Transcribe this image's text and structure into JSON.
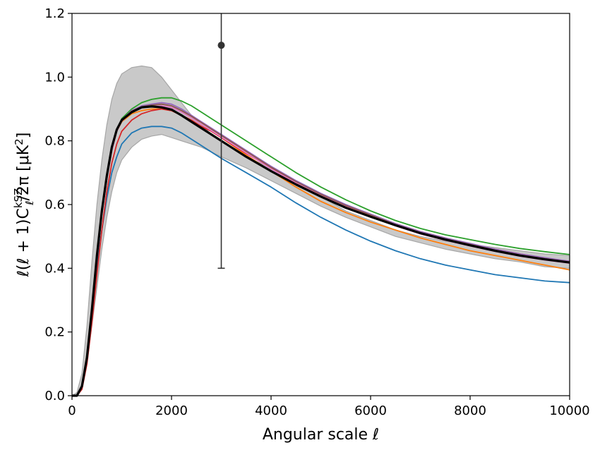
{
  "chart_data": {
    "type": "line",
    "xlabel": "Angular scale ℓ",
    "ylabel": "ℓ(ℓ + 1)C_ℓ^{kSZ}/2π [μK²]",
    "xlim": [
      0,
      10000
    ],
    "ylim": [
      0.0,
      1.2
    ],
    "x_ticks": [
      "0",
      "2000",
      "4000",
      "6000",
      "8000",
      "10000"
    ],
    "y_ticks": [
      "0.0",
      "0.2",
      "0.4",
      "0.6",
      "0.8",
      "1.0",
      "1.2"
    ],
    "grid": false,
    "x": [
      0,
      100,
      200,
      300,
      400,
      500,
      600,
      700,
      800,
      900,
      1000,
      1200,
      1400,
      1600,
      1800,
      2000,
      2200,
      2400,
      2600,
      2800,
      3000,
      3500,
      4000,
      4500,
      5000,
      5500,
      6000,
      6500,
      7000,
      7500,
      8000,
      8500,
      9000,
      9500,
      10000
    ],
    "band": {
      "color": "#c9c9c9",
      "edge_color": "#a6a6a6",
      "upper": [
        0,
        0.01,
        0.07,
        0.22,
        0.42,
        0.6,
        0.74,
        0.85,
        0.93,
        0.98,
        1.01,
        1.03,
        1.035,
        1.03,
        1.0,
        0.96,
        0.92,
        0.88,
        0.85,
        0.82,
        0.8,
        0.75,
        0.715,
        0.67,
        0.625,
        0.58,
        0.55,
        0.52,
        0.5,
        0.485,
        0.475,
        0.465,
        0.455,
        0.445,
        0.44
      ],
      "lower": [
        0,
        0.0,
        0.02,
        0.1,
        0.22,
        0.34,
        0.46,
        0.56,
        0.64,
        0.7,
        0.74,
        0.78,
        0.805,
        0.815,
        0.82,
        0.81,
        0.8,
        0.79,
        0.78,
        0.765,
        0.75,
        0.715,
        0.675,
        0.635,
        0.595,
        0.56,
        0.53,
        0.5,
        0.48,
        0.46,
        0.445,
        0.43,
        0.42,
        0.405,
        0.4
      ]
    },
    "series": [
      {
        "color": "#1f77b4",
        "width": 1.8,
        "values": [
          0,
          0.0,
          0.03,
          0.12,
          0.26,
          0.4,
          0.52,
          0.62,
          0.7,
          0.75,
          0.79,
          0.825,
          0.84,
          0.845,
          0.845,
          0.84,
          0.825,
          0.805,
          0.785,
          0.765,
          0.745,
          0.7,
          0.655,
          0.605,
          0.56,
          0.52,
          0.485,
          0.455,
          0.43,
          0.41,
          0.395,
          0.38,
          0.37,
          0.36,
          0.355
        ]
      },
      {
        "color": "#ff7f0e",
        "width": 1.8,
        "values": [
          0,
          0.0,
          0.03,
          0.13,
          0.28,
          0.44,
          0.57,
          0.68,
          0.77,
          0.83,
          0.86,
          0.885,
          0.895,
          0.9,
          0.9,
          0.895,
          0.88,
          0.865,
          0.845,
          0.83,
          0.81,
          0.755,
          0.705,
          0.655,
          0.61,
          0.575,
          0.545,
          0.52,
          0.495,
          0.475,
          0.455,
          0.44,
          0.425,
          0.41,
          0.395
        ]
      },
      {
        "color": "#2ca02c",
        "width": 1.8,
        "values": [
          0,
          0.0,
          0.03,
          0.12,
          0.27,
          0.43,
          0.57,
          0.68,
          0.77,
          0.83,
          0.87,
          0.9,
          0.92,
          0.93,
          0.935,
          0.935,
          0.925,
          0.91,
          0.89,
          0.87,
          0.85,
          0.8,
          0.75,
          0.7,
          0.655,
          0.615,
          0.58,
          0.55,
          0.525,
          0.505,
          0.49,
          0.475,
          0.462,
          0.452,
          0.443
        ]
      },
      {
        "color": "#d62728",
        "width": 1.8,
        "values": [
          0,
          0.0,
          0.02,
          0.1,
          0.23,
          0.38,
          0.52,
          0.64,
          0.73,
          0.79,
          0.83,
          0.865,
          0.885,
          0.895,
          0.9,
          0.895,
          0.88,
          0.865,
          0.845,
          0.83,
          0.81,
          0.76,
          0.715,
          0.67,
          0.63,
          0.595,
          0.565,
          0.54,
          0.515,
          0.495,
          0.475,
          0.46,
          0.445,
          0.432,
          0.42
        ]
      },
      {
        "color": "#9467bd",
        "width": 1.8,
        "values": [
          0,
          0.0,
          0.03,
          0.12,
          0.27,
          0.43,
          0.57,
          0.68,
          0.77,
          0.83,
          0.865,
          0.895,
          0.91,
          0.915,
          0.92,
          0.915,
          0.9,
          0.88,
          0.86,
          0.84,
          0.82,
          0.77,
          0.72,
          0.675,
          0.635,
          0.6,
          0.57,
          0.54,
          0.515,
          0.495,
          0.478,
          0.46,
          0.445,
          0.433,
          0.422
        ]
      },
      {
        "color": "#8c564b",
        "width": 1.8,
        "values": [
          0,
          0.0,
          0.03,
          0.12,
          0.27,
          0.43,
          0.57,
          0.68,
          0.77,
          0.83,
          0.865,
          0.893,
          0.907,
          0.912,
          0.915,
          0.91,
          0.895,
          0.877,
          0.857,
          0.837,
          0.817,
          0.767,
          0.717,
          0.672,
          0.632,
          0.597,
          0.567,
          0.537,
          0.512,
          0.492,
          0.475,
          0.457,
          0.442,
          0.43,
          0.42
        ]
      },
      {
        "color": "#e377c2",
        "width": 1.8,
        "values": [
          0,
          0.0,
          0.03,
          0.12,
          0.27,
          0.43,
          0.57,
          0.68,
          0.77,
          0.83,
          0.862,
          0.89,
          0.903,
          0.908,
          0.91,
          0.905,
          0.89,
          0.872,
          0.852,
          0.832,
          0.812,
          0.762,
          0.712,
          0.668,
          0.628,
          0.593,
          0.563,
          0.533,
          0.508,
          0.488,
          0.47,
          0.453,
          0.438,
          0.426,
          0.416
        ]
      },
      {
        "color": "#000000",
        "width": 3.2,
        "values": [
          0,
          0.0,
          0.03,
          0.12,
          0.27,
          0.44,
          0.58,
          0.69,
          0.78,
          0.835,
          0.865,
          0.89,
          0.905,
          0.908,
          0.905,
          0.898,
          0.88,
          0.86,
          0.84,
          0.82,
          0.8,
          0.75,
          0.705,
          0.663,
          0.625,
          0.59,
          0.562,
          0.535,
          0.51,
          0.49,
          0.472,
          0.455,
          0.44,
          0.428,
          0.418
        ]
      }
    ],
    "error_point": {
      "x": 3000,
      "y": 1.1,
      "y_low": 0.4,
      "y_high": 1.22,
      "color": "#333333"
    }
  }
}
